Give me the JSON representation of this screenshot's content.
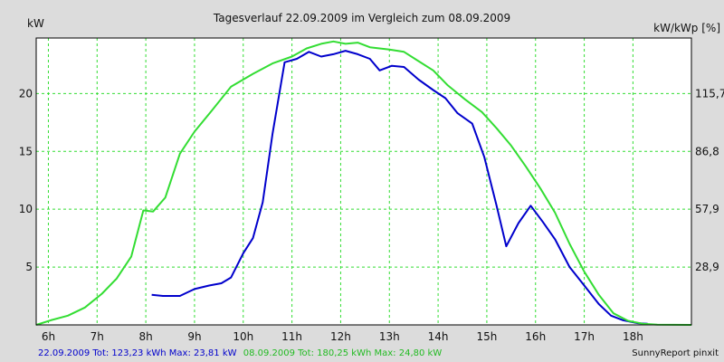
{
  "chart_data": {
    "type": "line",
    "title": "Tagesverlauf 22.09.2009 im Vergleich zum 08.09.2009",
    "ylabel_left": "kW",
    "ylabel_right": "kW/kWp [%]",
    "x_ticks": [
      "6h",
      "7h",
      "8h",
      "9h",
      "10h",
      "11h",
      "12h",
      "13h",
      "14h",
      "15h",
      "16h",
      "17h",
      "18h"
    ],
    "y_ticks_left": [
      "5",
      "10",
      "15",
      "20"
    ],
    "y_ticks_right": [
      "28,9",
      "57,9",
      "86,8",
      "115,7"
    ],
    "xlim": [
      5.75,
      19.2
    ],
    "ylim": [
      0,
      24.8
    ],
    "grid": true,
    "series": [
      {
        "color": "#0000cc",
        "points": [
          [
            8.12,
            2.6
          ],
          [
            8.35,
            2.5
          ],
          [
            8.7,
            2.5
          ],
          [
            9.0,
            3.1
          ],
          [
            9.3,
            3.4
          ],
          [
            9.55,
            3.6
          ],
          [
            9.75,
            4.1
          ],
          [
            10.0,
            6.2
          ],
          [
            10.2,
            7.5
          ],
          [
            10.4,
            10.6
          ],
          [
            10.6,
            16.5
          ],
          [
            10.85,
            22.7
          ],
          [
            11.1,
            23.0
          ],
          [
            11.35,
            23.6
          ],
          [
            11.6,
            23.2
          ],
          [
            11.85,
            23.4
          ],
          [
            12.1,
            23.7
          ],
          [
            12.35,
            23.4
          ],
          [
            12.6,
            23.0
          ],
          [
            12.8,
            22.0
          ],
          [
            13.05,
            22.4
          ],
          [
            13.3,
            22.3
          ],
          [
            13.6,
            21.2
          ],
          [
            13.9,
            20.3
          ],
          [
            14.15,
            19.6
          ],
          [
            14.4,
            18.3
          ],
          [
            14.7,
            17.4
          ],
          [
            14.95,
            14.5
          ],
          [
            15.2,
            10.3
          ],
          [
            15.4,
            6.8
          ],
          [
            15.65,
            8.8
          ],
          [
            15.9,
            10.3
          ],
          [
            16.15,
            8.9
          ],
          [
            16.4,
            7.4
          ],
          [
            16.7,
            5.0
          ],
          [
            17.0,
            3.4
          ],
          [
            17.3,
            1.8
          ],
          [
            17.55,
            0.8
          ],
          [
            17.8,
            0.4
          ],
          [
            18.1,
            0.15
          ],
          [
            18.3,
            0.1
          ]
        ]
      },
      {
        "color": "#33dd33",
        "points": [
          [
            5.75,
            0.0
          ],
          [
            6.05,
            0.4
          ],
          [
            6.4,
            0.8
          ],
          [
            6.75,
            1.5
          ],
          [
            7.1,
            2.7
          ],
          [
            7.4,
            4.0
          ],
          [
            7.7,
            5.9
          ],
          [
            7.95,
            9.9
          ],
          [
            8.15,
            9.8
          ],
          [
            8.4,
            11.0
          ],
          [
            8.7,
            14.8
          ],
          [
            9.0,
            16.7
          ],
          [
            9.35,
            18.5
          ],
          [
            9.75,
            20.6
          ],
          [
            10.2,
            21.7
          ],
          [
            10.6,
            22.6
          ],
          [
            11.0,
            23.2
          ],
          [
            11.3,
            23.9
          ],
          [
            11.6,
            24.3
          ],
          [
            11.85,
            24.5
          ],
          [
            12.1,
            24.3
          ],
          [
            12.35,
            24.4
          ],
          [
            12.6,
            24.0
          ],
          [
            13.0,
            23.8
          ],
          [
            13.3,
            23.6
          ],
          [
            13.6,
            22.8
          ],
          [
            13.9,
            22.0
          ],
          [
            14.2,
            20.7
          ],
          [
            14.55,
            19.5
          ],
          [
            14.9,
            18.4
          ],
          [
            15.2,
            17.0
          ],
          [
            15.5,
            15.5
          ],
          [
            15.8,
            13.7
          ],
          [
            16.1,
            11.8
          ],
          [
            16.4,
            9.7
          ],
          [
            16.7,
            7.0
          ],
          [
            17.0,
            4.6
          ],
          [
            17.3,
            2.6
          ],
          [
            17.6,
            1.0
          ],
          [
            17.9,
            0.35
          ],
          [
            18.2,
            0.1
          ],
          [
            18.5,
            0.02
          ],
          [
            19.2,
            0.0
          ]
        ]
      }
    ],
    "legend_parts": [
      {
        "text": "22.09.2009 Tot: 123,23 kWh Max: 23,81 kW",
        "color": "#0000cc"
      },
      {
        "text": "08.09.2009 Tot: 180,25 kWh Max: 24,80 kW",
        "color": "#33dd33"
      }
    ],
    "credit": "SunnyReport pinxit"
  }
}
